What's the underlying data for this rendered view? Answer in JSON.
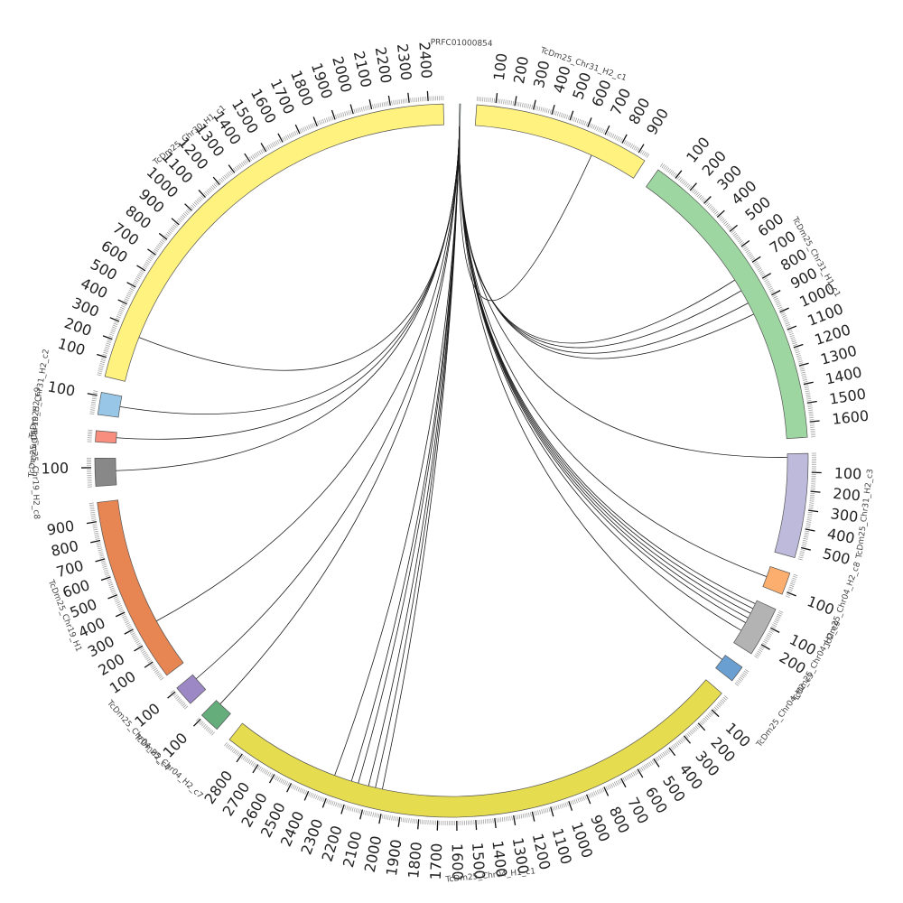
{
  "chart_data": {
    "type": "circos",
    "background": "#ffffff",
    "link_color": "#1a1a1a",
    "segments": [
      {
        "id": "s0",
        "label": "PRFC01000854",
        "length": 5,
        "color": "#b9dcd9",
        "ticks": []
      },
      {
        "id": "s1",
        "label": "TcDm25_Chr31_H2_c1",
        "length": 950,
        "color": "#fff27f",
        "ticks": [
          100,
          200,
          300,
          400,
          500,
          600,
          700,
          800,
          900
        ]
      },
      {
        "id": "s2",
        "label": "TcDm25_Chr31_H1_c1",
        "length": 1680,
        "color": "#9dd6a0",
        "ticks": [
          100,
          200,
          300,
          400,
          500,
          600,
          700,
          800,
          900,
          1000,
          1100,
          1200,
          1300,
          1400,
          1500,
          1600
        ]
      },
      {
        "id": "s3",
        "label": "TcDm25_Chr31_H2_c3",
        "length": 560,
        "color": "#bebadb",
        "ticks": [
          100,
          200,
          300,
          400,
          500
        ]
      },
      {
        "id": "s4",
        "label": "TcDm25_Chr04_H2_c8",
        "length": 120,
        "color": "#fcae6f",
        "ticks": [
          100
        ]
      },
      {
        "id": "s5",
        "label": "TcDm25_Chr04_H2_c9",
        "length": 270,
        "color": "#b3b3b3",
        "ticks": [
          100,
          200
        ]
      },
      {
        "id": "s6",
        "label": "TcDm25_Chr04_H2_c5",
        "length": 90,
        "color": "#6a9fd1",
        "ticks": []
      },
      {
        "id": "s7",
        "label": "TcDm25_Chr04_H1_c1",
        "length": 2900,
        "color": "#e6dc4f",
        "ticks": [
          100,
          200,
          300,
          400,
          500,
          600,
          700,
          800,
          900,
          1000,
          1100,
          1200,
          1300,
          1400,
          1500,
          1600,
          1700,
          1800,
          1900,
          2000,
          2100,
          2200,
          2300,
          2400,
          2500,
          2600,
          2700,
          2800
        ]
      },
      {
        "id": "s8",
        "label": "TcDm25_Chr04_H2_c7",
        "length": 110,
        "color": "#66ad7c",
        "ticks": [
          100
        ]
      },
      {
        "id": "s9",
        "label": "TcDm25_Chr04_H2_c4",
        "length": 110,
        "color": "#9b88c4",
        "ticks": [
          100
        ]
      },
      {
        "id": "s10",
        "label": "TcDm25_Chr19_H1",
        "length": 1000,
        "color": "#e78553",
        "ticks": [
          100,
          200,
          300,
          400,
          500,
          600,
          700,
          800,
          900
        ]
      },
      {
        "id": "s11",
        "label": "TcDm25_Chr19_H2_c8",
        "length": 150,
        "color": "#888888",
        "ticks": [
          100
        ]
      },
      {
        "id": "s12",
        "label": "TcDm25_Chr19_H2_c9",
        "length": 60,
        "color": "#f88f7e",
        "ticks": []
      },
      {
        "id": "s13",
        "label": "TcDm25_Chr31_H2_c2",
        "length": 120,
        "color": "#97c6e6",
        "ticks": [
          100
        ]
      },
      {
        "id": "s14",
        "label": "TcDm25_Chr30_H1_c1",
        "length": 2480,
        "color": "#fff27f",
        "ticks": [
          100,
          200,
          300,
          400,
          500,
          600,
          700,
          800,
          900,
          1000,
          1100,
          1200,
          1300,
          1400,
          1500,
          1600,
          1700,
          1800,
          1900,
          2000,
          2100,
          2200,
          2300,
          2400
        ]
      }
    ],
    "links": [
      {
        "target": "s1",
        "pos": 680
      },
      {
        "target": "s2",
        "pos": 730
      },
      {
        "target": "s2",
        "pos": 800
      },
      {
        "target": "s2",
        "pos": 880
      },
      {
        "target": "s2",
        "pos": 950
      },
      {
        "target": "s3",
        "pos": 20
      },
      {
        "target": "s4",
        "pos": 60
      },
      {
        "target": "s5",
        "pos": 20
      },
      {
        "target": "s5",
        "pos": 50
      },
      {
        "target": "s5",
        "pos": 80
      },
      {
        "target": "s5",
        "pos": 110
      },
      {
        "target": "s5",
        "pos": 140
      },
      {
        "target": "s5",
        "pos": 190
      },
      {
        "target": "s6",
        "pos": 30
      },
      {
        "target": "s7",
        "pos": 2020
      },
      {
        "target": "s7",
        "pos": 2060
      },
      {
        "target": "s7",
        "pos": 2100
      },
      {
        "target": "s7",
        "pos": 2160
      },
      {
        "target": "s7",
        "pos": 2200
      },
      {
        "target": "s7",
        "pos": 2300
      },
      {
        "target": "s8",
        "pos": 80
      },
      {
        "target": "s9",
        "pos": 80
      },
      {
        "target": "s10",
        "pos": 280
      },
      {
        "target": "s11",
        "pos": 80
      },
      {
        "target": "s12",
        "pos": 30
      },
      {
        "target": "s13",
        "pos": 60
      },
      {
        "target": "s14",
        "pos": 260
      }
    ]
  }
}
